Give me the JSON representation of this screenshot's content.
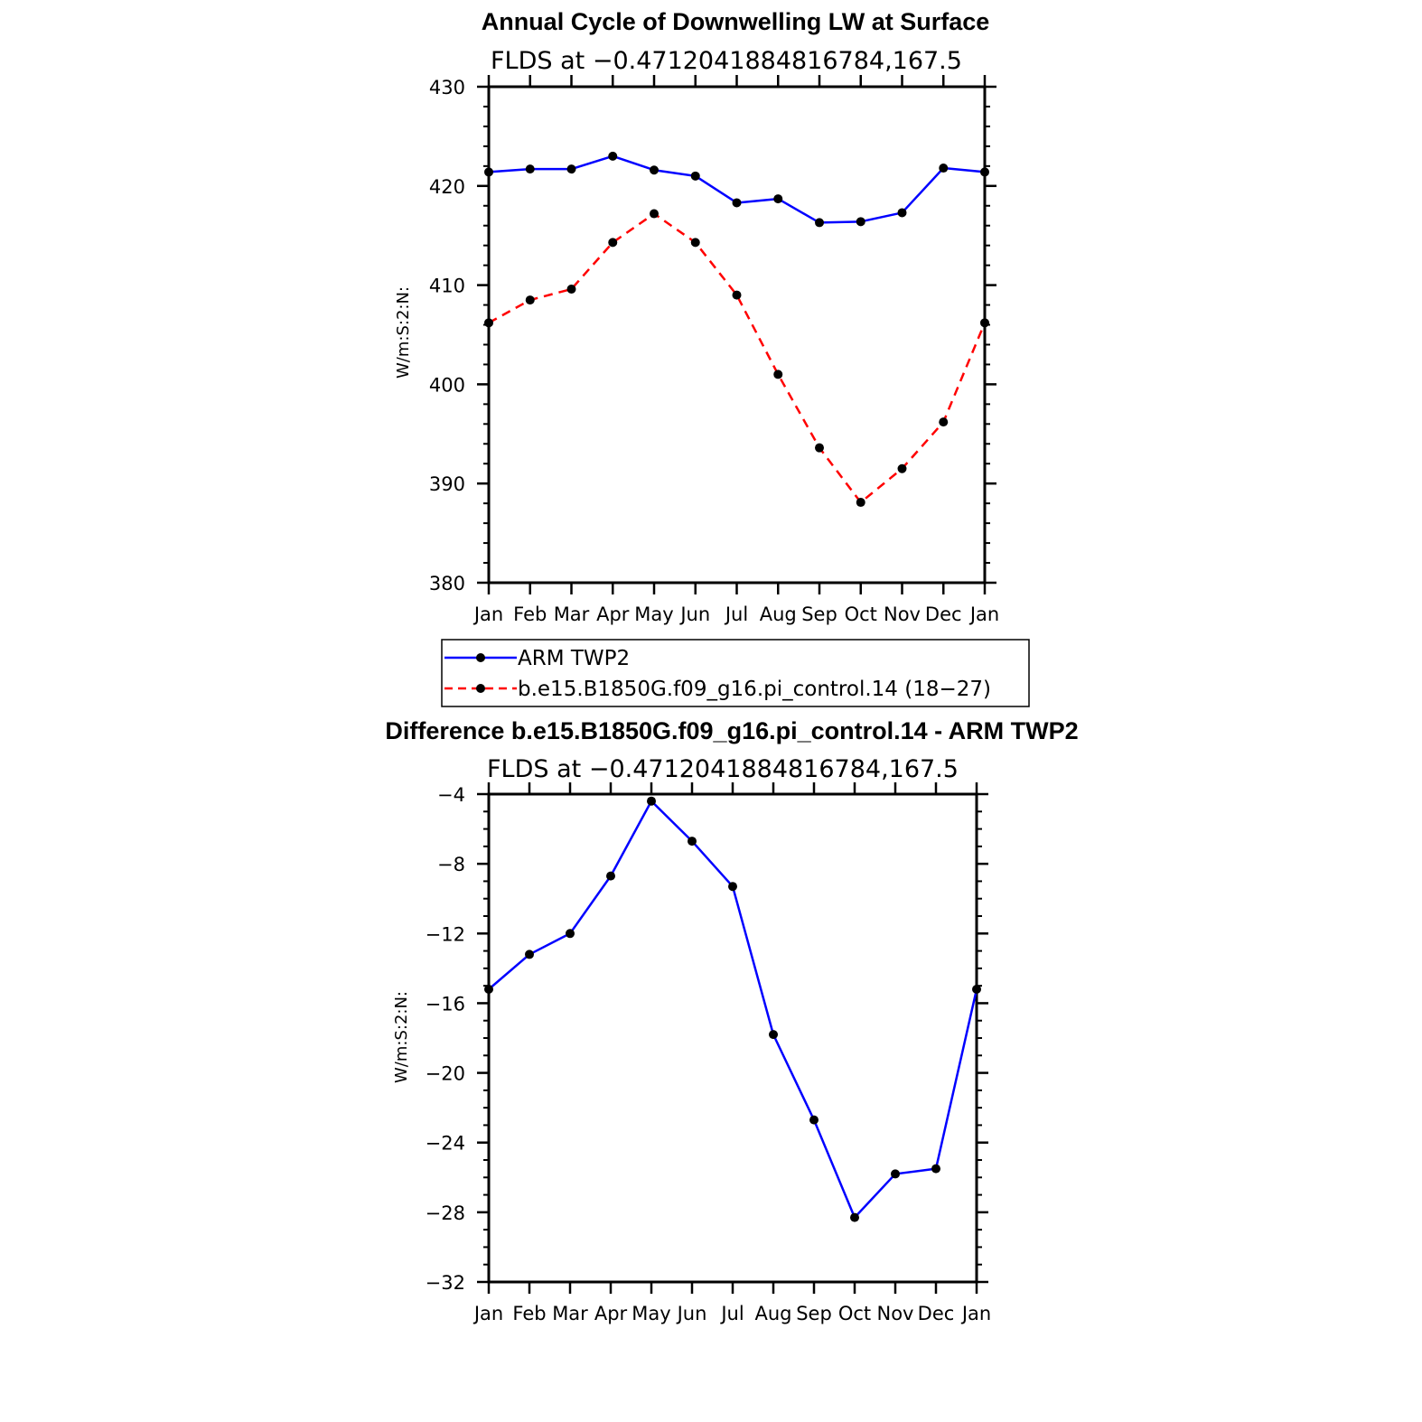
{
  "chart_data": [
    {
      "type": "line",
      "title": "Annual Cycle of Downwelling LW at Surface",
      "subtitle": "FLDS at −0.4712041884816784,167.5",
      "xlabel": "",
      "ylabel": "W/m:S:2:N:",
      "categories": [
        "Jan",
        "Feb",
        "Mar",
        "Apr",
        "May",
        "Jun",
        "Jul",
        "Aug",
        "Sep",
        "Oct",
        "Nov",
        "Dec",
        "Jan"
      ],
      "ylim": [
        380,
        430
      ],
      "yticks": [
        "380",
        "390",
        "400",
        "410",
        "420",
        "430"
      ],
      "legend_position": "below",
      "series": [
        {
          "name": "ARM TWP2",
          "color": "#0000ff",
          "style": "solid",
          "values": [
            421.4,
            421.7,
            421.7,
            423.0,
            421.6,
            421.0,
            418.3,
            418.7,
            416.3,
            416.4,
            417.3,
            421.8,
            421.4
          ]
        },
        {
          "name": "b.e15.B1850G.f09_g16.pi_control.14 (18−27)",
          "color": "#ff0000",
          "style": "dashed",
          "values": [
            406.2,
            408.5,
            409.6,
            414.3,
            417.2,
            414.3,
            409.0,
            401.0,
            393.6,
            388.1,
            391.5,
            396.2,
            406.2
          ]
        }
      ]
    },
    {
      "type": "line",
      "title": "Difference b.e15.B1850G.f09_g16.pi_control.14 - ARM TWP2",
      "subtitle": "FLDS at −0.4712041884816784,167.5",
      "xlabel": "",
      "ylabel": "W/m:S:2:N:",
      "categories": [
        "Jan",
        "Feb",
        "Mar",
        "Apr",
        "May",
        "Jun",
        "Jul",
        "Aug",
        "Sep",
        "Oct",
        "Nov",
        "Dec",
        "Jan"
      ],
      "ylim": [
        -32,
        -4
      ],
      "yticks": [
        "−32",
        "−28",
        "−24",
        "−20",
        "−16",
        "−12",
        "−8",
        "−4"
      ],
      "series": [
        {
          "name": "Difference",
          "color": "#0000ff",
          "style": "solid",
          "values": [
            -15.2,
            -13.2,
            -12.0,
            -8.7,
            -4.4,
            -6.7,
            -9.3,
            -17.8,
            -22.7,
            -28.3,
            -25.8,
            -25.5,
            -15.2
          ]
        }
      ]
    }
  ]
}
